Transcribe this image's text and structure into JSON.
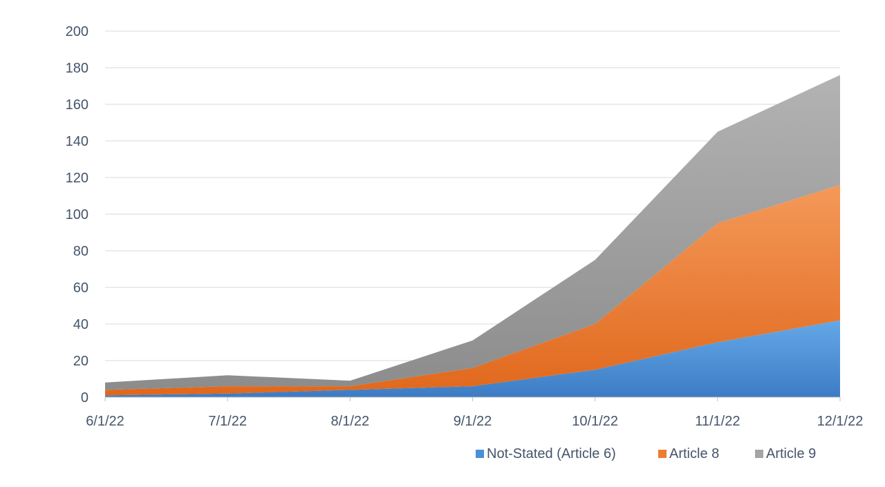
{
  "chart_data": {
    "type": "area",
    "stacked": true,
    "title": "",
    "xlabel": "",
    "ylabel": "",
    "categories": [
      "6/1/22",
      "7/1/22",
      "8/1/22",
      "9/1/22",
      "10/1/22",
      "11/1/22",
      "12/1/22"
    ],
    "series": [
      {
        "name": "Not-Stated (Article 6)",
        "values": [
          1,
          2,
          4,
          6,
          15,
          30,
          42
        ],
        "color": "#4a90d9"
      },
      {
        "name": "Article 8",
        "values": [
          3,
          4,
          2,
          10,
          25,
          65,
          74
        ],
        "color": "#ed7d31"
      },
      {
        "name": "Article 9",
        "values": [
          4,
          6,
          3,
          15,
          35,
          50,
          60
        ],
        "color": "#a5a5a5"
      }
    ],
    "ylim": [
      0,
      200
    ],
    "yticks": [
      0,
      20,
      40,
      60,
      80,
      100,
      120,
      140,
      160,
      180,
      200
    ],
    "grid": true,
    "legend_position": "bottom-right"
  }
}
